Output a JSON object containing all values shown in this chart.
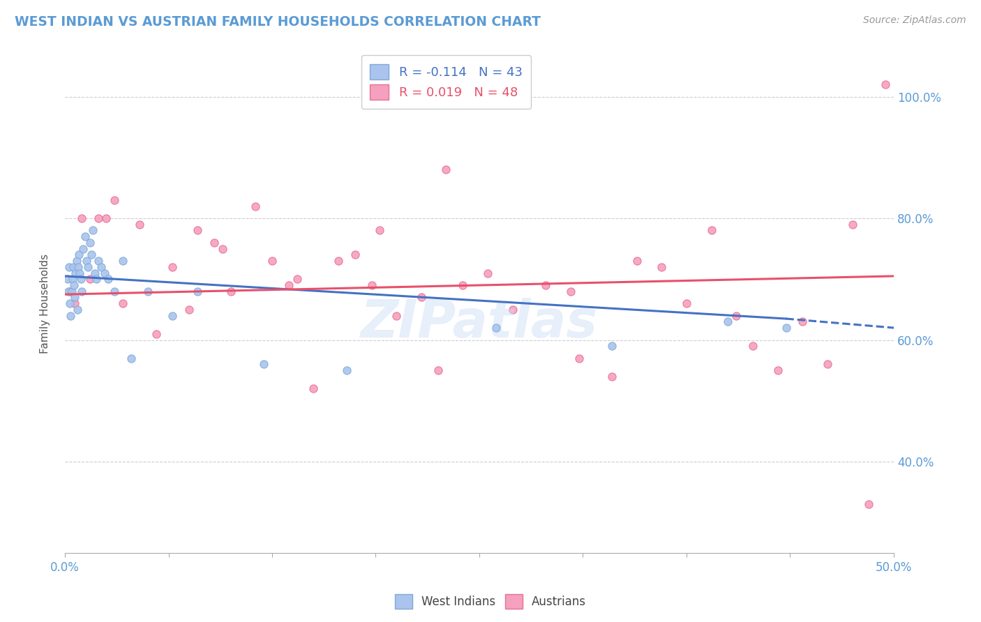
{
  "title": "WEST INDIAN VS AUSTRIAN FAMILY HOUSEHOLDS CORRELATION CHART",
  "source": "Source: ZipAtlas.com",
  "ylabel": "Family Households",
  "west_indian_color": "#aac4ed",
  "west_indian_edge": "#7faad8",
  "austrian_color": "#f5a0be",
  "austrian_edge": "#e87090",
  "trend_west_indian_color": "#4472c4",
  "trend_austrian_color": "#e8506a",
  "R_west_indian": -0.114,
  "N_west_indian": 43,
  "R_austrian": 0.019,
  "N_austrian": 48,
  "xlim": [
    0.0,
    50.0
  ],
  "ylim": [
    25.0,
    107.0
  ],
  "yticks": [
    40.0,
    60.0,
    80.0,
    100.0
  ],
  "xticks": [
    0.0,
    6.25,
    12.5,
    18.75,
    25.0,
    31.25,
    37.5,
    43.75,
    50.0
  ],
  "west_indian_x": [
    0.15,
    0.2,
    0.25,
    0.3,
    0.35,
    0.4,
    0.45,
    0.5,
    0.55,
    0.6,
    0.65,
    0.7,
    0.75,
    0.8,
    0.85,
    0.9,
    0.95,
    1.0,
    1.1,
    1.2,
    1.3,
    1.4,
    1.5,
    1.6,
    1.7,
    1.8,
    1.9,
    2.0,
    2.2,
    2.4,
    2.6,
    3.0,
    3.5,
    4.0,
    5.0,
    6.5,
    8.0,
    12.0,
    17.0,
    26.0,
    33.0,
    40.0,
    43.5
  ],
  "west_indian_y": [
    70,
    68,
    72,
    66,
    64,
    68,
    70,
    72,
    69,
    67,
    71,
    73,
    65,
    72,
    74,
    71,
    70,
    68,
    75,
    77,
    73,
    72,
    76,
    74,
    78,
    71,
    70,
    73,
    72,
    71,
    70,
    68,
    73,
    57,
    68,
    64,
    68,
    56,
    55,
    62,
    59,
    63,
    62
  ],
  "austrian_x": [
    0.3,
    0.6,
    1.0,
    1.5,
    2.0,
    2.5,
    3.0,
    3.5,
    4.5,
    5.5,
    6.5,
    7.5,
    8.0,
    9.0,
    10.0,
    11.5,
    12.5,
    13.5,
    15.0,
    16.5,
    17.5,
    18.5,
    19.0,
    20.0,
    21.5,
    22.5,
    24.0,
    25.5,
    27.0,
    29.0,
    31.0,
    33.0,
    34.5,
    36.0,
    37.5,
    39.0,
    40.5,
    41.5,
    43.0,
    44.5,
    46.0,
    47.5,
    48.5,
    49.5,
    23.0,
    9.5,
    14.0,
    30.5
  ],
  "austrian_y": [
    68,
    66,
    80,
    70,
    80,
    80,
    83,
    66,
    79,
    61,
    72,
    65,
    78,
    76,
    68,
    82,
    73,
    69,
    52,
    73,
    74,
    69,
    78,
    64,
    67,
    55,
    69,
    71,
    65,
    69,
    57,
    54,
    73,
    72,
    66,
    78,
    64,
    59,
    55,
    63,
    56,
    79,
    33,
    102,
    88,
    75,
    70,
    68
  ],
  "trend_wi_x0": 0.0,
  "trend_wi_x1": 43.5,
  "trend_wi_y0": 70.5,
  "trend_wi_y1": 63.5,
  "trend_wi_dashed_x0": 43.5,
  "trend_wi_dashed_x1": 50.0,
  "trend_wi_dashed_y0": 63.5,
  "trend_wi_dashed_y1": 62.0,
  "trend_au_x0": 0.0,
  "trend_au_x1": 50.0,
  "trend_au_y0": 67.5,
  "trend_au_y1": 70.5
}
